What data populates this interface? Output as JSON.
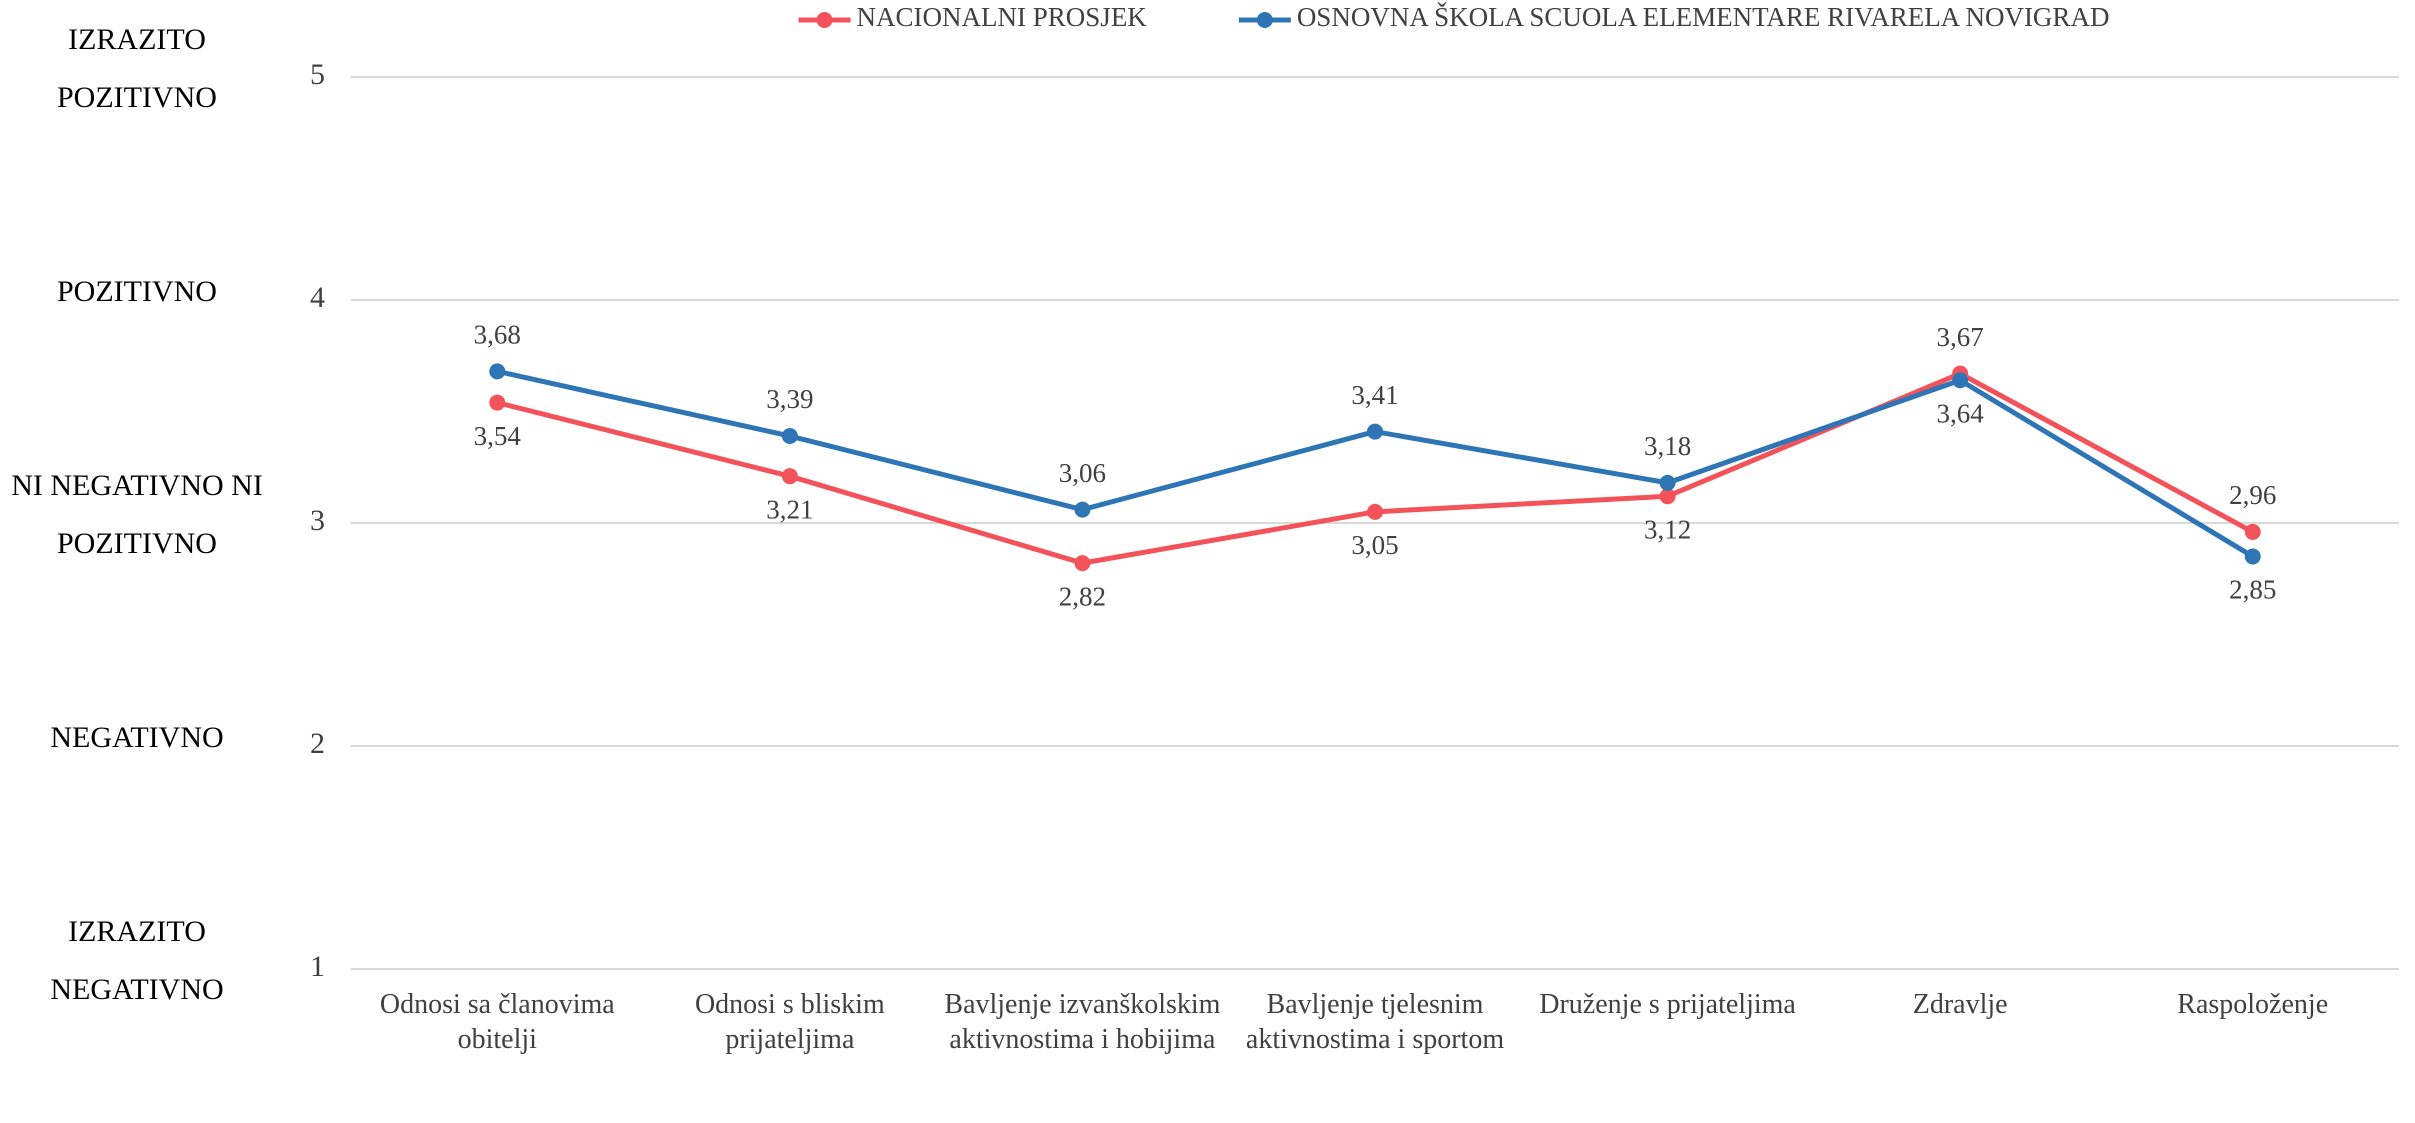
{
  "chart_data": {
    "type": "line",
    "categories": [
      "Odnosi sa članovima obitelji",
      "Odnosi s bliskim prijateljima",
      "Bavljenje izvanškolskim aktivnostima i hobijima",
      "Bavljenje tjelesnim aktivnostima i sportom",
      "Druženje s prijateljima",
      "Zdravlje",
      "Raspoloženje"
    ],
    "series": [
      {
        "name": "NACIONALNI PROSJEK",
        "color": "#f4525a",
        "values": [
          3.54,
          3.21,
          2.82,
          3.05,
          3.12,
          3.67,
          2.96
        ],
        "value_labels": [
          "3,54",
          "3,21",
          "2,82",
          "3,05",
          "3,12",
          "3,67",
          "2,96"
        ]
      },
      {
        "name": "OSNOVNA ŠKOLA SCUOLA ELEMENTARE RIVARELA NOVIGRAD",
        "color": "#2e75b6",
        "values": [
          3.68,
          3.39,
          3.06,
          3.41,
          3.18,
          3.64,
          2.85
        ],
        "value_labels": [
          "3,68",
          "3,39",
          "3,06",
          "3,41",
          "3,18",
          "3,64",
          "2,85"
        ]
      }
    ],
    "ylim": [
      1,
      5
    ],
    "yticks": [
      1,
      2,
      3,
      4,
      5
    ],
    "grid": true,
    "legend": "top",
    "y_level_labels": [
      "IZRAZITO NEGATIVNO",
      "NEGATIVNO",
      "NI NEGATIVNO NI POZITIVNO",
      "POZITIVNO",
      "IZRAZITO POZITIVNO"
    ]
  }
}
